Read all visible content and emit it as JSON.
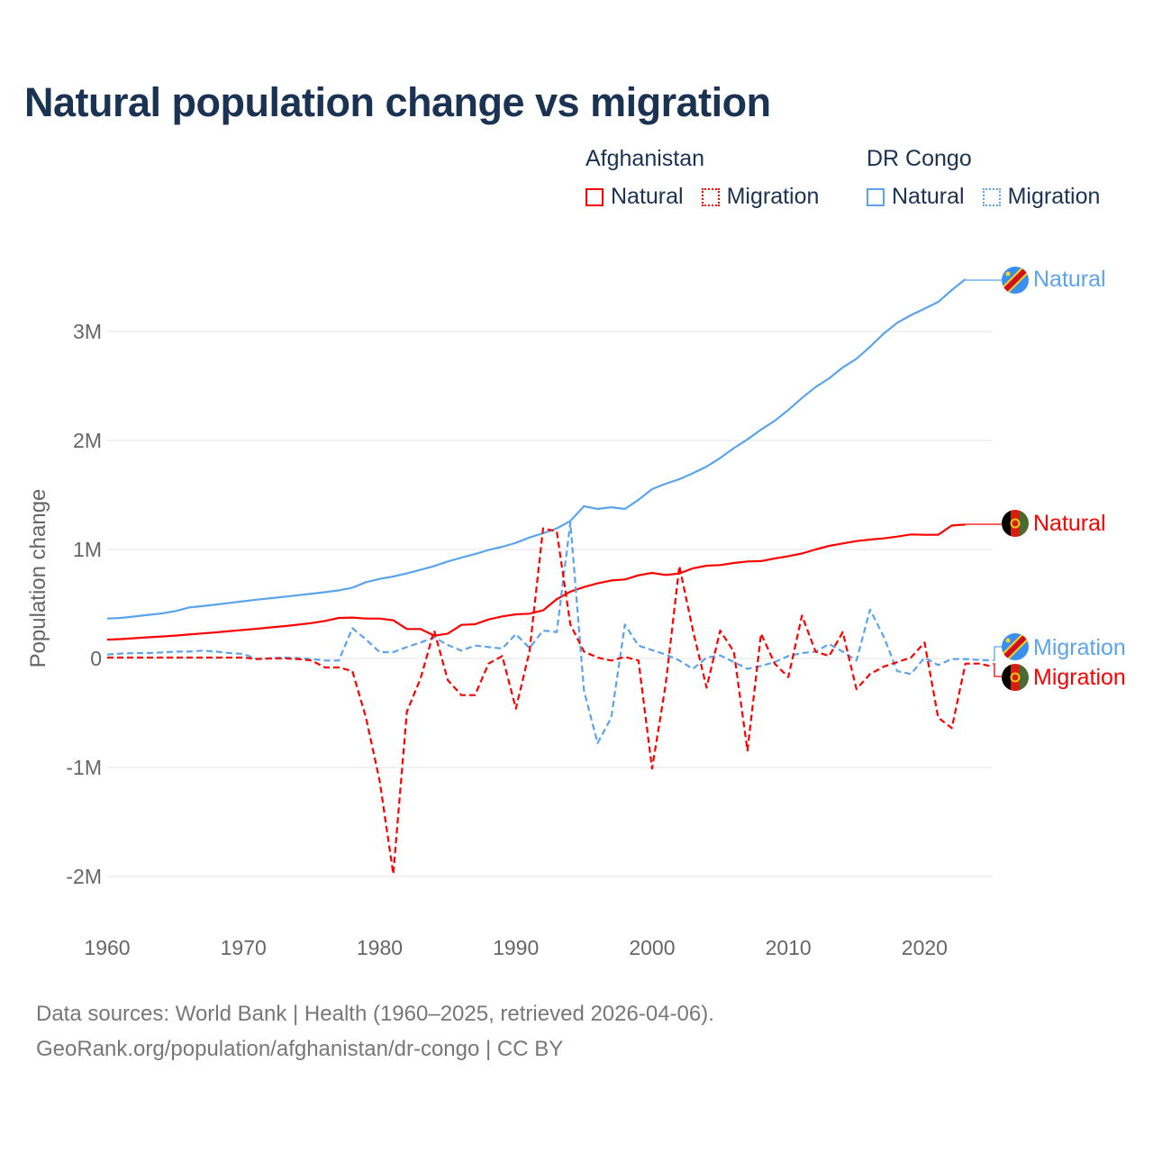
{
  "title": "Natural population change vs migration",
  "legend": {
    "groups": [
      {
        "country": "Afghanistan",
        "items": [
          "Natural",
          "Migration"
        ],
        "color": "#ff0000"
      },
      {
        "country": "DR Congo",
        "items": [
          "Natural",
          "Migration"
        ],
        "color": "#5ba4ec"
      }
    ]
  },
  "end_labels": {
    "drc_natural": "Natural",
    "afg_natural": "Natural",
    "drc_migration": "Migration",
    "afg_migration": "Migration"
  },
  "source": {
    "line1": "Data sources: World Bank | Health (1960–2025, retrieved 2026-04-06).",
    "line2": "GeoRank.org/population/afghanistan/dr-congo | CC BY"
  },
  "chart_data": {
    "type": "line",
    "title": "Natural population change vs migration",
    "xlabel": "",
    "ylabel": "Population change",
    "xlim": [
      1960,
      2025
    ],
    "ylim": [
      -2300000,
      3550000
    ],
    "grid": true,
    "legend_position": "top-right",
    "x_ticks": [
      1960,
      1970,
      1980,
      1990,
      2000,
      2010,
      2020
    ],
    "x_tick_labels": [
      "1960",
      "1970",
      "1980",
      "1990",
      "2000",
      "2010",
      "2020"
    ],
    "y_ticks": [
      -2000000,
      -1000000,
      0,
      1000000,
      2000000,
      3000000
    ],
    "y_tick_labels": [
      "-2M",
      "-1M",
      "0",
      "1M",
      "2M",
      "3M"
    ],
    "x_start": 1960,
    "series": [
      {
        "name": "DR Congo Natural",
        "country": "DR Congo",
        "kind": "Natural",
        "color": "#5ba4ec",
        "dash": false,
        "values": [
          366000,
          372000,
          385000,
          400000,
          413000,
          435000,
          468000,
          480000,
          495000,
          510000,
          525000,
          540000,
          553000,
          566000,
          580000,
          594000,
          608000,
          625000,
          650000,
          700000,
          730000,
          752000,
          780000,
          813000,
          848000,
          890000,
          925000,
          958000,
          995000,
          1025000,
          1060000,
          1110000,
          1149000,
          1193000,
          1262000,
          1397000,
          1372000,
          1388000,
          1372000,
          1455000,
          1554000,
          1603000,
          1645000,
          1700000,
          1760000,
          1840000,
          1930000,
          2010000,
          2100000,
          2180000,
          2280000,
          2390000,
          2490000,
          2570000,
          2670000,
          2750000,
          2860000,
          2980000,
          3080000,
          3150000,
          3210000,
          3270000,
          3380000,
          3480000,
          null,
          null
        ]
      },
      {
        "name": "Afghanistan Natural",
        "country": "Afghanistan",
        "kind": "Natural",
        "color": "#ff0000",
        "dash": false,
        "values": [
          173000,
          178000,
          186000,
          194000,
          202000,
          210000,
          220000,
          230000,
          240000,
          251000,
          262000,
          273000,
          285000,
          297000,
          310000,
          325000,
          345000,
          372000,
          375000,
          366000,
          366000,
          350000,
          270000,
          270000,
          209000,
          228000,
          308000,
          314000,
          358000,
          386000,
          405000,
          411000,
          441000,
          545000,
          613000,
          655000,
          689000,
          716000,
          725000,
          763000,
          785000,
          766000,
          780000,
          827000,
          851000,
          857000,
          876000,
          890000,
          893000,
          917000,
          939000,
          964000,
          1000000,
          1033000,
          1055000,
          1077000,
          1091000,
          1102000,
          1118000,
          1138000,
          1135000,
          1135000,
          1220000,
          1228000,
          null,
          null
        ]
      },
      {
        "name": "DR Congo Migration",
        "country": "DR Congo",
        "kind": "Migration",
        "color": "#5ba4ec",
        "dash": true,
        "values": [
          36000,
          45000,
          50000,
          50000,
          55000,
          63000,
          63000,
          72000,
          63000,
          50000,
          41000,
          -5000,
          3000,
          8000,
          3000,
          -5000,
          -19000,
          -19000,
          278000,
          174000,
          58000,
          58000,
          105000,
          146000,
          193000,
          124000,
          72000,
          118000,
          105000,
          91000,
          223000,
          96000,
          256000,
          242000,
          1248000,
          -295000,
          -777000,
          -543000,
          311000,
          118000,
          77000,
          36000,
          -19000,
          -96000,
          8000,
          28000,
          -33000,
          -96000,
          -69000,
          -33000,
          22000,
          50000,
          63000,
          132000,
          63000,
          -19000,
          449000,
          201000,
          -116000,
          -143000,
          8000,
          -61000,
          -5000,
          -5000,
          -14000,
          -19000
        ]
      },
      {
        "name": "Afghanistan Migration",
        "country": "Afghanistan",
        "kind": "Migration",
        "color": "#ff0000",
        "dash": true,
        "values": [
          8000,
          8000,
          8000,
          8000,
          8000,
          8000,
          8000,
          8000,
          8000,
          8000,
          8000,
          -5000,
          0,
          0,
          -5000,
          -19000,
          -83000,
          -83000,
          -116000,
          -543000,
          -1123000,
          -1977000,
          -488000,
          -185000,
          256000,
          -198000,
          -336000,
          -336000,
          -47000,
          22000,
          -460000,
          63000,
          1193000,
          1165000,
          311000,
          63000,
          8000,
          -19000,
          14000,
          -19000,
          -1011000,
          -240000,
          848000,
          256000,
          -268000,
          256000,
          63000,
          -845000,
          228000,
          -47000,
          -171000,
          393000,
          63000,
          22000,
          242000,
          -281000,
          -143000,
          -75000,
          -33000,
          8000,
          146000,
          -543000,
          -639000,
          -47000,
          -47000,
          -75000
        ]
      }
    ]
  }
}
